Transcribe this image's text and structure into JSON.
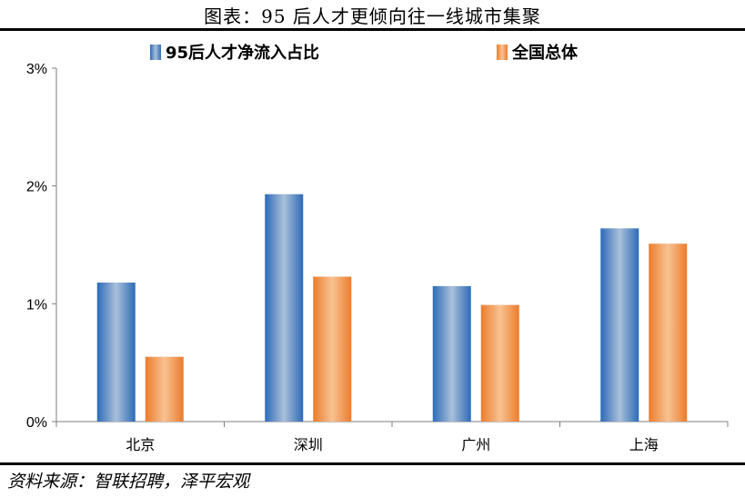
{
  "header": {
    "title": "图表：95 后人才更倾向往一线城市集聚"
  },
  "footer": {
    "source": "资料来源：智联招聘，泽平宏观"
  },
  "chart_data": {
    "type": "bar",
    "categories": [
      "北京",
      "深圳",
      "广州",
      "上海"
    ],
    "series": [
      {
        "name": "95后人才净流入占比",
        "values": [
          1.18,
          1.93,
          1.15,
          1.64
        ],
        "color": "#2F6DB5"
      },
      {
        "name": "全国总体",
        "values": [
          0.55,
          1.23,
          0.99,
          1.51
        ],
        "color": "#F0893A"
      }
    ],
    "yticks": [
      "0%",
      "1%",
      "2%",
      "3%"
    ],
    "ylim": [
      0,
      3
    ],
    "legend": "top",
    "grid": false
  }
}
